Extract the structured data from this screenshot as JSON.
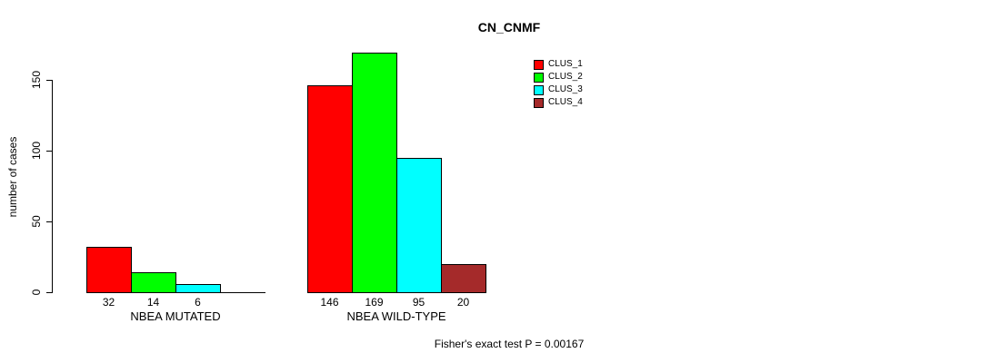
{
  "chart_data": {
    "type": "bar",
    "title": "CN_CNMF",
    "ylabel": "number of cases",
    "xlabel": "",
    "categories": [
      "NBEA MUTATED",
      "NBEA WILD-TYPE"
    ],
    "series": [
      {
        "name": "CLUS_1",
        "color": "#ff0000",
        "values": [
          32,
          146
        ]
      },
      {
        "name": "CLUS_2",
        "color": "#00ff00",
        "values": [
          14,
          169
        ]
      },
      {
        "name": "CLUS_3",
        "color": "#00ffff",
        "values": [
          6,
          95
        ]
      },
      {
        "name": "CLUS_4",
        "color": "#a52a2a",
        "values": [
          0,
          20
        ]
      }
    ],
    "bar_value_labels": [
      [
        "32",
        "14",
        "6",
        ""
      ],
      [
        "146",
        "169",
        "95",
        "20"
      ]
    ],
    "yticks": [
      0,
      50,
      100,
      150
    ],
    "ylim": [
      0,
      175
    ],
    "grid": false,
    "legend_position": "top-right",
    "legend": [
      "CLUS_1",
      "CLUS_2",
      "CLUS_3",
      "CLUS_4"
    ],
    "annotation": "Fisher's exact test P = 0.00167"
  }
}
